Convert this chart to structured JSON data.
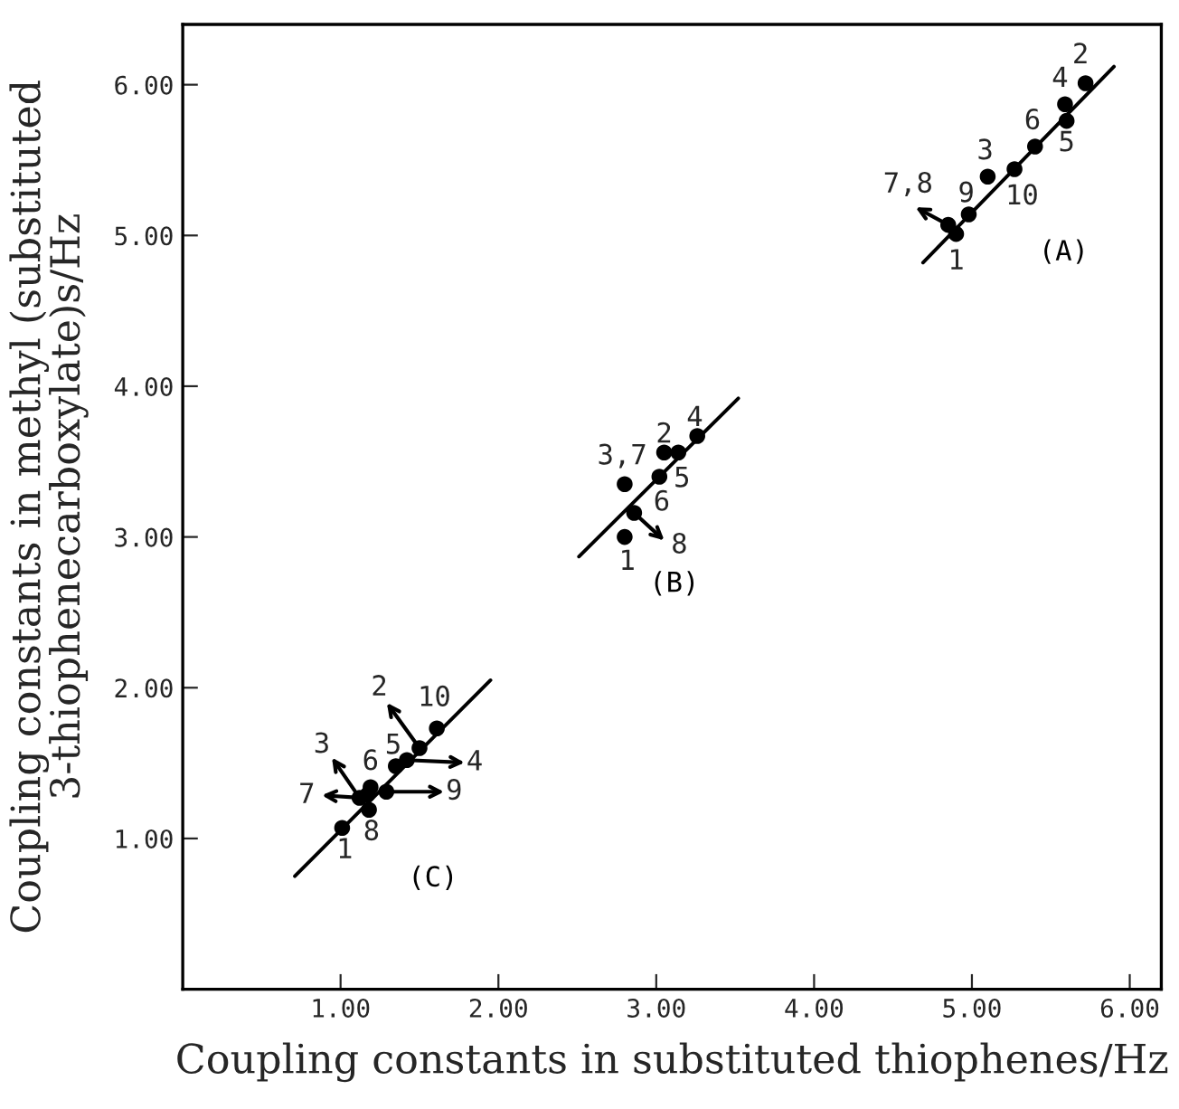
{
  "chart_data": {
    "type": "scatter",
    "xlabel": "Coupling constants in substituted thiophenes/Hz",
    "ylabel": "Coupling constants in methyl (substituted\n3-thiophenecarboxylate)s/Hz",
    "xlim": [
      0,
      6.2
    ],
    "ylim": [
      0,
      6.4
    ],
    "xticks": [
      {
        "value": 1,
        "label": "1.00"
      },
      {
        "value": 2,
        "label": "2.00"
      },
      {
        "value": 3,
        "label": "3.00"
      },
      {
        "value": 4,
        "label": "4.00"
      },
      {
        "value": 5,
        "label": "5.00"
      },
      {
        "value": 6,
        "label": "6.00"
      }
    ],
    "yticks": [
      {
        "value": 1,
        "label": "1.00"
      },
      {
        "value": 2,
        "label": "2.00"
      },
      {
        "value": 3,
        "label": "3.00"
      },
      {
        "value": 4,
        "label": "4.00"
      },
      {
        "value": 5,
        "label": "5.00"
      },
      {
        "value": 6,
        "label": "6.00"
      }
    ],
    "marker": "circle",
    "series": [
      {
        "color": "#000000",
        "x": [
          5.72,
          5.59,
          5.6,
          5.4,
          5.1,
          5.27,
          4.98,
          4.85,
          4.9
        ],
        "values": [
          6.01,
          5.87,
          5.76,
          5.59,
          5.39,
          5.44,
          5.14,
          5.07,
          5.01
        ]
      },
      {
        "type": "line",
        "name": "(A)",
        "marker": "none",
        "color": "#000000",
        "x": [
          4.69,
          5.9
        ],
        "values": [
          4.82,
          6.12
        ]
      },
      {
        "color": "#000000",
        "x": [
          3.05,
          3.14,
          3.26,
          3.02,
          2.8,
          2.86,
          2.8
        ],
        "values": [
          3.56,
          3.56,
          3.67,
          3.4,
          3.35,
          3.16,
          3.0
        ]
      },
      {
        "type": "line",
        "name": "(B)",
        "marker": "none",
        "color": "#000000",
        "x": [
          2.51,
          3.52
        ],
        "values": [
          2.87,
          3.92
        ]
      },
      {
        "color": "#000000",
        "x": [
          1.01,
          1.18,
          1.19,
          1.17,
          1.12,
          1.29,
          1.35,
          1.42,
          1.5,
          1.61
        ],
        "values": [
          1.07,
          1.19,
          1.34,
          1.29,
          1.27,
          1.31,
          1.48,
          1.52,
          1.6,
          1.73
        ]
      },
      {
        "type": "line",
        "name": "(C)",
        "marker": "none",
        "color": "#000000",
        "x": [
          0.71,
          1.95
        ],
        "values": [
          0.75,
          2.05
        ]
      }
    ],
    "annotations": [
      {
        "text": "2",
        "x": 5.72,
        "y": 6.01
      },
      {
        "text": "4",
        "x": 5.59,
        "y": 5.87
      },
      {
        "text": "6",
        "x": 5.4,
        "y": 5.59
      },
      {
        "text": "5",
        "x": 5.6,
        "y": 5.76
      },
      {
        "text": "3",
        "x": 5.1,
        "y": 5.39
      },
      {
        "text": "10",
        "x": 5.27,
        "y": 5.44
      },
      {
        "text": "9",
        "x": 4.98,
        "y": 5.14
      },
      {
        "text": "7,8",
        "x": 4.85,
        "y": 5.07
      },
      {
        "text": "1",
        "x": 4.9,
        "y": 5.01
      },
      {
        "text": "4",
        "x": 3.26,
        "y": 3.67
      },
      {
        "text": "2",
        "x": 3.05,
        "y": 3.56
      },
      {
        "text": "3,7",
        "x": 2.8,
        "y": 3.35
      },
      {
        "text": "5",
        "x": 3.02,
        "y": 3.4
      },
      {
        "text": "6",
        "x": 2.86,
        "y": 3.16
      },
      {
        "text": "8",
        "x": 2.86,
        "y": 3.16
      },
      {
        "text": "1",
        "x": 2.8,
        "y": 3.0
      },
      {
        "text": "2",
        "x": 1.5,
        "y": 1.6
      },
      {
        "text": "10",
        "x": 1.61,
        "y": 1.73
      },
      {
        "text": "3",
        "x": 1.12,
        "y": 1.27
      },
      {
        "text": "6",
        "x": 1.19,
        "y": 1.34
      },
      {
        "text": "5",
        "x": 1.35,
        "y": 1.48
      },
      {
        "text": "4",
        "x": 1.42,
        "y": 1.52
      },
      {
        "text": "7",
        "x": 1.12,
        "y": 1.27
      },
      {
        "text": "9",
        "x": 1.29,
        "y": 1.31
      },
      {
        "text": "8",
        "x": 1.18,
        "y": 1.19
      },
      {
        "text": "1",
        "x": 1.01,
        "y": 1.07
      }
    ]
  }
}
